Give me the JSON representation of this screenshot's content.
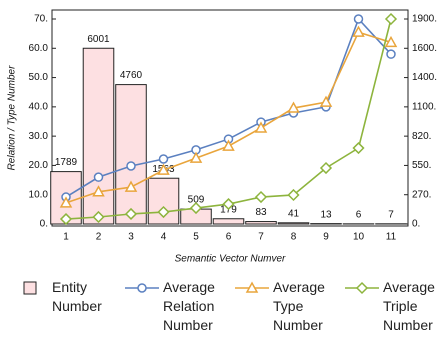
{
  "chart_data": {
    "type": "bar-line",
    "x_label": "Semantic Vector Numver",
    "y_label": "Relation / Type Number",
    "categories": [
      "1",
      "2",
      "3",
      "4",
      "5",
      "6",
      "7",
      "8",
      "9",
      "10",
      "11"
    ],
    "ylim": [
      0,
      70
    ],
    "yticks": [
      {
        "value": 0,
        "label": "0."
      },
      {
        "value": 10,
        "label": "10.0"
      },
      {
        "value": 20,
        "label": "20.0"
      },
      {
        "value": 30,
        "label": "30.0"
      },
      {
        "value": 40,
        "label": "40.0"
      },
      {
        "value": 50,
        "label": "50.0"
      },
      {
        "value": 60,
        "label": "60.0"
      },
      {
        "value": 70,
        "label": "70."
      }
    ],
    "y2lim": [
      0,
      1900
    ],
    "y2ticks": [
      {
        "value": 0,
        "label": "0."
      },
      {
        "value": 271.43,
        "label": "270."
      },
      {
        "value": 542.86,
        "label": "550."
      },
      {
        "value": 814.29,
        "label": "820."
      },
      {
        "value": 1085.71,
        "label": "1100."
      },
      {
        "value": 1357.14,
        "label": "1400."
      },
      {
        "value": 1628.57,
        "label": "1600."
      },
      {
        "value": 1900,
        "label": "1900."
      }
    ],
    "y3lim": [
      0,
      7000
    ],
    "series": [
      {
        "name": "Entity Number",
        "kind": "bar",
        "axis": "y3",
        "color": "#fde0e2",
        "values": [
          1789,
          6001,
          4760,
          1563,
          509,
          179,
          83,
          41,
          13,
          6,
          7
        ]
      },
      {
        "name": "Average Relation Number",
        "kind": "line",
        "marker": "circle",
        "color": "#5b80c0",
        "values": [
          9.2,
          16,
          19.8,
          22.2,
          25.3,
          29,
          34.8,
          37.9,
          40,
          70,
          58
        ]
      },
      {
        "name": "Average Type Number",
        "kind": "line",
        "marker": "triangle",
        "color": "#e9a53c",
        "values": [
          7.2,
          11,
          12.6,
          18.4,
          22.5,
          26.6,
          32.8,
          39.6,
          41.6,
          65.5,
          62
        ]
      },
      {
        "name": "Average Triple Number",
        "kind": "line",
        "marker": "diamond",
        "axis": "y2",
        "color": "#8db43d",
        "values": [
          46,
          65,
          93,
          111,
          148,
          185,
          250,
          269,
          519,
          704,
          1900
        ]
      }
    ]
  }
}
